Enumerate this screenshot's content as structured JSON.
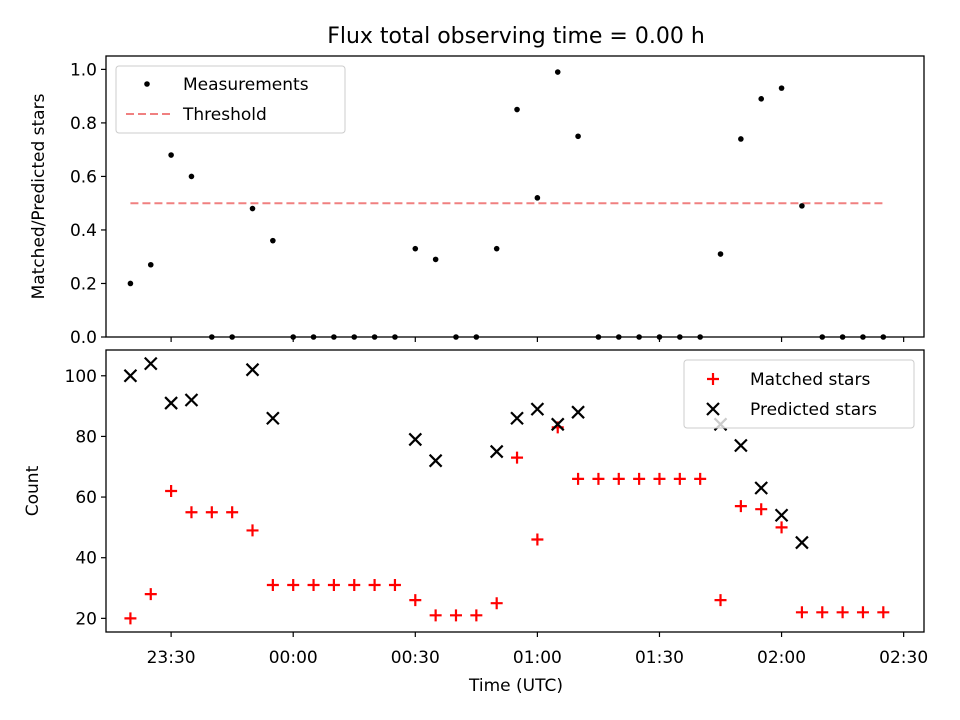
{
  "chart_data": [
    {
      "type": "scatter",
      "title": "Flux total observing time = 0.00 h",
      "xlabel": "",
      "ylabel": "Matched/Predicted stars",
      "ylim": [
        0,
        1.05
      ],
      "yticks": [
        "0.0",
        "0.2",
        "0.4",
        "0.6",
        "0.8",
        "1.0"
      ],
      "grid": false,
      "legend_position": "upper-left",
      "x_time_range": [
        "23:14",
        "02:35"
      ],
      "x_ticks": [
        "23:30",
        "00:00",
        "00:30",
        "01:00",
        "01:30",
        "02:00",
        "02:30"
      ],
      "series": [
        {
          "name": "Measurements",
          "color": "#000000",
          "marker": "dot",
          "x": [
            "23:20",
            "23:25",
            "23:30",
            "23:35",
            "23:40",
            "23:45",
            "23:50",
            "23:55",
            "00:00",
            "00:05",
            "00:10",
            "00:15",
            "00:20",
            "00:25",
            "00:30",
            "00:35",
            "00:40",
            "00:45",
            "00:50",
            "00:55",
            "01:00",
            "01:05",
            "01:10",
            "01:15",
            "01:20",
            "01:25",
            "01:30",
            "01:35",
            "01:40",
            "01:45",
            "01:50",
            "01:55",
            "02:00",
            "02:05",
            "02:10",
            "02:15",
            "02:20",
            "02:25"
          ],
          "values": [
            0.2,
            0.27,
            0.68,
            0.6,
            0.0,
            0.0,
            0.48,
            0.36,
            0.0,
            0.0,
            0.0,
            0.0,
            0.0,
            0.0,
            0.33,
            0.29,
            0.0,
            0.0,
            0.33,
            0.85,
            0.52,
            0.99,
            0.75,
            0.0,
            0.0,
            0.0,
            0.0,
            0.0,
            0.0,
            0.31,
            0.74,
            0.89,
            0.93,
            0.49,
            0.0,
            0.0,
            0.0,
            0.0
          ]
        },
        {
          "name": "Threshold",
          "color": "#f08080",
          "style": "dashed",
          "x": [
            "23:20",
            "02:25"
          ],
          "values": [
            0.5,
            0.5
          ]
        }
      ]
    },
    {
      "type": "scatter",
      "title": "",
      "xlabel": "Time (UTC)",
      "ylabel": "Count",
      "ylim": [
        15.5,
        108.5
      ],
      "yticks": [
        "20",
        "40",
        "60",
        "80",
        "100"
      ],
      "grid": false,
      "legend_position": "upper-right",
      "x_ticks": [
        "23:30",
        "00:00",
        "00:30",
        "01:00",
        "01:30",
        "02:00",
        "02:30"
      ],
      "series": [
        {
          "name": "Matched stars",
          "color": "#ff0000",
          "marker": "plus",
          "x": [
            "23:20",
            "23:25",
            "23:30",
            "23:35",
            "23:40",
            "23:45",
            "23:50",
            "23:55",
            "00:00",
            "00:05",
            "00:10",
            "00:15",
            "00:20",
            "00:25",
            "00:30",
            "00:35",
            "00:40",
            "00:45",
            "00:50",
            "00:55",
            "01:00",
            "01:05",
            "01:10",
            "01:15",
            "01:20",
            "01:25",
            "01:30",
            "01:35",
            "01:40",
            "01:45",
            "01:50",
            "01:55",
            "02:00",
            "02:05",
            "02:10",
            "02:15",
            "02:20",
            "02:25"
          ],
          "values": [
            20,
            28,
            62,
            55,
            55,
            55,
            49,
            31,
            31,
            31,
            31,
            31,
            31,
            31,
            26,
            21,
            21,
            21,
            25,
            73,
            46,
            83,
            66,
            66,
            66,
            66,
            66,
            66,
            66,
            26,
            57,
            56,
            50,
            22,
            22,
            22,
            22,
            22
          ]
        },
        {
          "name": "Predicted stars",
          "color": "#000000",
          "marker": "x",
          "x": [
            "23:20",
            "23:25",
            "23:30",
            "23:35",
            "23:50",
            "23:55",
            "00:30",
            "00:35",
            "00:50",
            "00:55",
            "01:00",
            "01:05",
            "01:10",
            "01:45",
            "01:50",
            "01:55",
            "02:00",
            "02:05"
          ],
          "values": [
            100,
            104,
            91,
            92,
            102,
            86,
            79,
            72,
            75,
            86,
            89,
            84,
            88,
            84,
            77,
            63,
            54,
            45
          ]
        }
      ]
    }
  ]
}
